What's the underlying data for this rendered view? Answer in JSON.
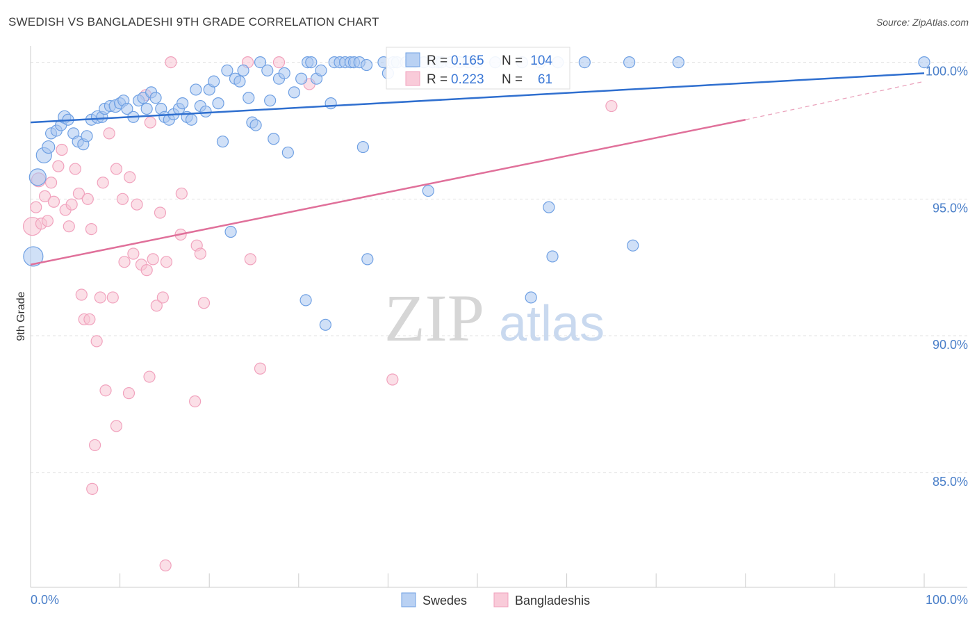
{
  "title": "SWEDISH VS BANGLADESHI 9TH GRADE CORRELATION CHART",
  "source": "Source: ZipAtlas.com",
  "watermark": {
    "zip": "ZIP",
    "atlas": "atlas"
  },
  "colors": {
    "swedes": "#6fa0e3",
    "swedes_line": "#2f6fcf",
    "bangladeshis": "#f1a2bd",
    "bangladeshis_line": "#e0709a",
    "axis_text": "#4a7fc9"
  },
  "legend": {
    "rows": [
      {
        "r_label": "R = ",
        "r_value": "0.165",
        "n_label": "N = ",
        "n_value": "104"
      },
      {
        "r_label": "R = ",
        "r_value": "0.223",
        "n_label": "N = ",
        "n_value": "61"
      }
    ]
  },
  "chart_data": {
    "type": "scatter",
    "xlabel": "",
    "ylabel": "9th Grade",
    "xlim": [
      0,
      100
    ],
    "ylim": [
      80.8,
      100.6
    ],
    "x_tick_labels": [
      "0.0%",
      "100.0%"
    ],
    "y_ticks": [
      85,
      90,
      95,
      100
    ],
    "y_tick_labels": [
      "85.0%",
      "90.0%",
      "95.0%",
      "100.0%"
    ],
    "grid": true,
    "legend_position": "bottom-center",
    "series": [
      {
        "name": "Swedes",
        "r": 0.165,
        "n": 104,
        "trend": {
          "x0": 0,
          "y0": 97.8,
          "x1": 100,
          "y1": 99.6
        },
        "points": [
          [
            0.3,
            92.9,
            14
          ],
          [
            0.8,
            95.8,
            12
          ],
          [
            1.5,
            96.6,
            11
          ],
          [
            2.0,
            96.9,
            9
          ],
          [
            2.3,
            97.4,
            8
          ],
          [
            2.9,
            97.5,
            8
          ],
          [
            3.4,
            97.7,
            8
          ],
          [
            3.8,
            98.0,
            9
          ],
          [
            4.2,
            97.9,
            8
          ],
          [
            4.8,
            97.4,
            8
          ],
          [
            5.3,
            97.1,
            8
          ],
          [
            5.9,
            97.0,
            8
          ],
          [
            6.3,
            97.3,
            8
          ],
          [
            6.8,
            97.9,
            8
          ],
          [
            7.5,
            98.0,
            9
          ],
          [
            8.0,
            98.0,
            8
          ],
          [
            8.3,
            98.3,
            8
          ],
          [
            8.9,
            98.4,
            8
          ],
          [
            9.5,
            98.4,
            9
          ],
          [
            10.0,
            98.5,
            8
          ],
          [
            10.4,
            98.6,
            8
          ],
          [
            10.8,
            98.3,
            8
          ],
          [
            11.5,
            98.0,
            8
          ],
          [
            12.1,
            98.6,
            8
          ],
          [
            12.6,
            98.7,
            8
          ],
          [
            13.0,
            98.3,
            8
          ],
          [
            13.5,
            98.9,
            8
          ],
          [
            14.0,
            98.7,
            8
          ],
          [
            14.6,
            98.3,
            8
          ],
          [
            15.0,
            98.0,
            8
          ],
          [
            15.5,
            97.9,
            8
          ],
          [
            16.0,
            98.1,
            8
          ],
          [
            16.6,
            98.3,
            8
          ],
          [
            17.0,
            98.5,
            8
          ],
          [
            17.5,
            98.0,
            8
          ],
          [
            18.0,
            97.9,
            8
          ],
          [
            18.5,
            99.0,
            8
          ],
          [
            19.0,
            98.4,
            8
          ],
          [
            19.6,
            98.2,
            8
          ],
          [
            20.0,
            99.0,
            8
          ],
          [
            20.5,
            99.3,
            8
          ],
          [
            21.0,
            98.5,
            8
          ],
          [
            21.5,
            97.1,
            8
          ],
          [
            22.0,
            99.7,
            8
          ],
          [
            22.9,
            99.4,
            8
          ],
          [
            23.4,
            99.3,
            8
          ],
          [
            23.8,
            99.7,
            8
          ],
          [
            24.4,
            98.7,
            8
          ],
          [
            24.8,
            97.8,
            8
          ],
          [
            25.2,
            97.7,
            8
          ],
          [
            25.7,
            100.0,
            8
          ],
          [
            26.5,
            99.7,
            8
          ],
          [
            26.8,
            98.6,
            8
          ],
          [
            27.2,
            97.2,
            8
          ],
          [
            27.8,
            99.4,
            8
          ],
          [
            28.4,
            99.6,
            8
          ],
          [
            28.8,
            96.7,
            8
          ],
          [
            29.5,
            98.9,
            8
          ],
          [
            30.3,
            99.4,
            8
          ],
          [
            31.0,
            100.0,
            8
          ],
          [
            31.4,
            100.0,
            8
          ],
          [
            32.0,
            99.4,
            8
          ],
          [
            32.5,
            99.7,
            8
          ],
          [
            33.6,
            98.5,
            8
          ],
          [
            34.0,
            100.0,
            8
          ],
          [
            34.6,
            100.0,
            8
          ],
          [
            35.2,
            100.0,
            8
          ],
          [
            35.8,
            100.0,
            8
          ],
          [
            36.2,
            100.0,
            8
          ],
          [
            36.8,
            100.0,
            8
          ],
          [
            37.2,
            96.9,
            8
          ],
          [
            37.6,
            99.9,
            8
          ],
          [
            39.5,
            100.0,
            8
          ],
          [
            40.0,
            99.6,
            8
          ],
          [
            40.6,
            100.0,
            8
          ],
          [
            41.0,
            100.0,
            8
          ],
          [
            42.0,
            100.0,
            8
          ],
          [
            42.5,
            100.0,
            8
          ],
          [
            43.0,
            100.0,
            8
          ],
          [
            44.0,
            100.0,
            8
          ],
          [
            45.0,
            100.0,
            8
          ],
          [
            45.6,
            100.0,
            8
          ],
          [
            46.0,
            100.0,
            8
          ],
          [
            47.0,
            100.0,
            8
          ],
          [
            48.0,
            100.0,
            8
          ],
          [
            49.0,
            100.0,
            8
          ],
          [
            50.0,
            100.0,
            8
          ],
          [
            52.0,
            100.0,
            8
          ],
          [
            55.0,
            100.0,
            8
          ],
          [
            59.0,
            100.0,
            8
          ],
          [
            62.0,
            100.0,
            8
          ],
          [
            67.0,
            100.0,
            8
          ],
          [
            72.5,
            100.0,
            8
          ],
          [
            100.0,
            100.0,
            8
          ],
          [
            44.5,
            95.3,
            8
          ],
          [
            37.7,
            92.8,
            8
          ],
          [
            22.4,
            93.8,
            8
          ],
          [
            30.8,
            91.3,
            8
          ],
          [
            33.0,
            90.4,
            8
          ],
          [
            58.0,
            94.7,
            8
          ],
          [
            58.4,
            92.9,
            8
          ],
          [
            67.4,
            93.3,
            8
          ],
          [
            56.0,
            91.4,
            8
          ],
          [
            57.0,
            100.0,
            8
          ]
        ]
      },
      {
        "name": "Bangladeshis",
        "r": 0.223,
        "n": 61,
        "trend": {
          "x0": 0,
          "y0": 92.6,
          "x1": 80,
          "y1": 97.9,
          "dash_x1": 100,
          "dash_y1": 99.3
        },
        "points": [
          [
            0.2,
            94.0,
            13
          ],
          [
            0.6,
            94.7,
            8
          ],
          [
            0.9,
            95.7,
            10
          ],
          [
            1.2,
            94.1,
            8
          ],
          [
            1.6,
            95.1,
            8
          ],
          [
            1.9,
            94.2,
            8
          ],
          [
            2.3,
            95.6,
            8
          ],
          [
            2.6,
            94.9,
            8
          ],
          [
            3.1,
            96.2,
            8
          ],
          [
            3.5,
            96.8,
            8
          ],
          [
            3.9,
            94.6,
            8
          ],
          [
            4.3,
            94.0,
            8
          ],
          [
            4.6,
            94.8,
            8
          ],
          [
            5.0,
            96.1,
            8
          ],
          [
            5.4,
            95.2,
            8
          ],
          [
            5.7,
            91.5,
            8
          ],
          [
            6.0,
            90.6,
            8
          ],
          [
            6.4,
            95.0,
            8
          ],
          [
            6.8,
            93.9,
            8
          ],
          [
            6.6,
            90.6,
            8
          ],
          [
            7.4,
            89.8,
            8
          ],
          [
            7.8,
            91.4,
            8
          ],
          [
            8.1,
            95.6,
            8
          ],
          [
            8.4,
            88.0,
            8
          ],
          [
            8.8,
            97.4,
            8
          ],
          [
            9.2,
            91.4,
            8
          ],
          [
            9.6,
            96.1,
            8
          ],
          [
            9.6,
            86.7,
            8
          ],
          [
            10.3,
            95.0,
            8
          ],
          [
            10.5,
            92.7,
            8
          ],
          [
            11.0,
            87.9,
            8
          ],
          [
            11.1,
            95.8,
            8
          ],
          [
            11.5,
            93.0,
            8
          ],
          [
            11.9,
            94.8,
            8
          ],
          [
            12.4,
            92.6,
            8
          ],
          [
            12.9,
            98.8,
            8
          ],
          [
            13.0,
            92.4,
            8
          ],
          [
            13.4,
            97.8,
            8
          ],
          [
            13.7,
            92.8,
            8
          ],
          [
            14.1,
            91.1,
            8
          ],
          [
            14.5,
            94.5,
            8
          ],
          [
            14.8,
            91.4,
            8
          ],
          [
            15.2,
            92.7,
            8
          ],
          [
            15.7,
            100.0,
            8
          ],
          [
            16.8,
            93.7,
            8
          ],
          [
            16.9,
            95.2,
            8
          ],
          [
            18.4,
            87.6,
            8
          ],
          [
            18.6,
            93.3,
            8
          ],
          [
            19.0,
            93.0,
            8
          ],
          [
            19.4,
            91.2,
            8
          ],
          [
            24.3,
            100.0,
            8
          ],
          [
            24.6,
            92.8,
            8
          ],
          [
            25.7,
            88.8,
            8
          ],
          [
            27.8,
            100.0,
            8
          ],
          [
            40.5,
            88.4,
            8
          ],
          [
            65.0,
            98.4,
            8
          ],
          [
            7.2,
            86.0,
            8
          ],
          [
            6.9,
            84.4,
            8
          ],
          [
            15.1,
            81.6,
            8
          ],
          [
            13.3,
            88.5,
            8
          ],
          [
            31.2,
            99.2,
            8
          ]
        ]
      }
    ]
  },
  "bottom_legend": {
    "items": [
      {
        "label": "Swedes"
      },
      {
        "label": "Bangladeshis"
      }
    ]
  }
}
